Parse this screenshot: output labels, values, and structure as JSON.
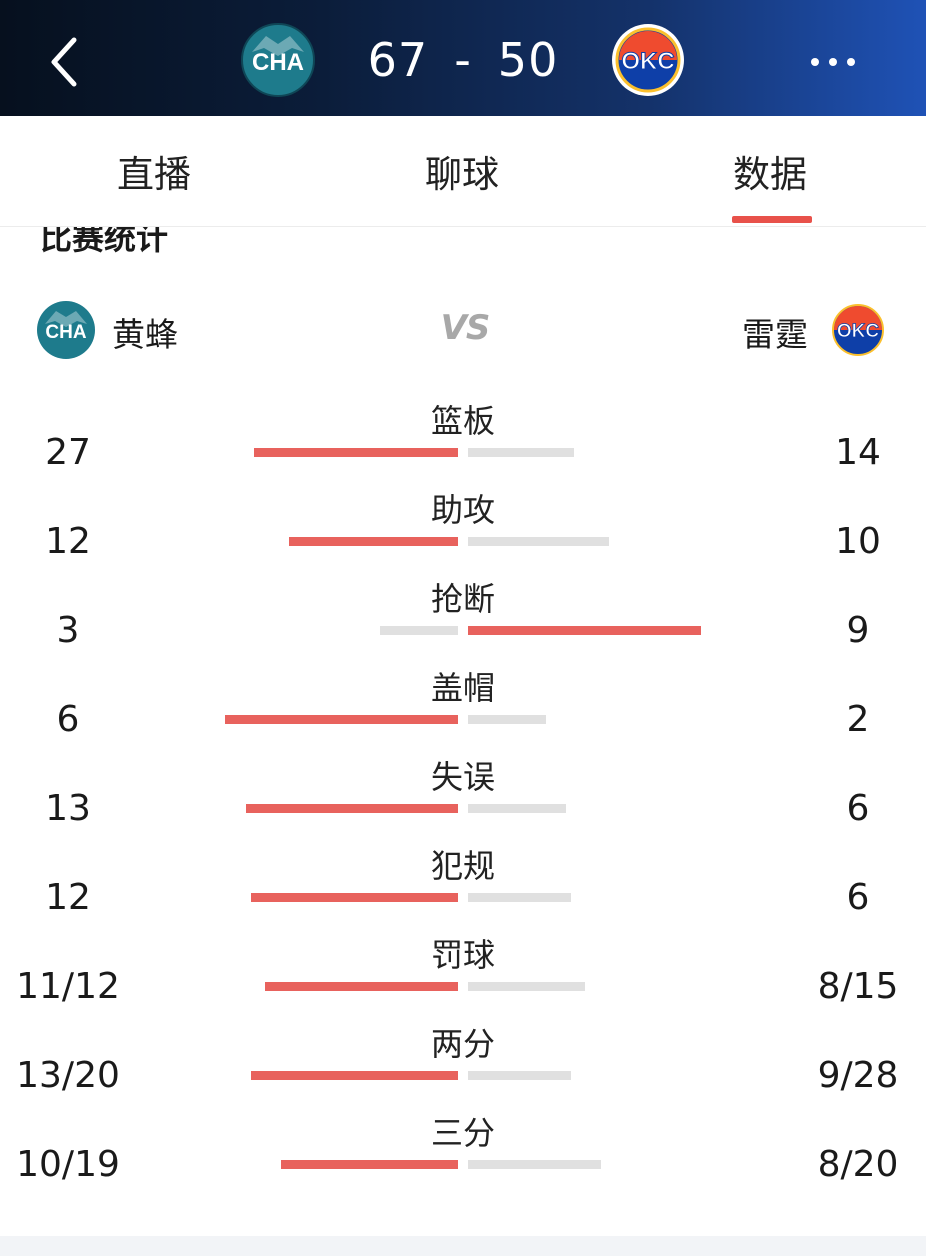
{
  "header": {
    "home_abbr": "CHA",
    "away_abbr": "OKC",
    "home_score": "67",
    "separator": "-",
    "away_score": "50"
  },
  "tabs": [
    {
      "label": "直播"
    },
    {
      "label": "聊球"
    },
    {
      "label": "数据",
      "active": true
    }
  ],
  "section": {
    "title": "比赛统计",
    "home_team": "黄蜂",
    "away_team": "雷霆",
    "vs": "VS"
  },
  "stats": [
    {
      "label": "篮板",
      "home": "27",
      "away": "14",
      "home_fraction": 0.659,
      "away_fraction": 0.341
    },
    {
      "label": "助攻",
      "home": "12",
      "away": "10",
      "home_fraction": 0.545,
      "away_fraction": 0.455
    },
    {
      "label": "抢断",
      "home": "3",
      "away": "9",
      "home_fraction": 0.25,
      "away_fraction": 0.75
    },
    {
      "label": "盖帽",
      "home": "6",
      "away": "2",
      "home_fraction": 0.75,
      "away_fraction": 0.25
    },
    {
      "label": "失误",
      "home": "13",
      "away": "6",
      "home_fraction": 0.684,
      "away_fraction": 0.316
    },
    {
      "label": "犯规",
      "home": "12",
      "away": "6",
      "home_fraction": 0.667,
      "away_fraction": 0.333
    },
    {
      "label": "罚球",
      "home": "11/12",
      "away": "8/15",
      "home_fraction": 0.621,
      "away_fraction": 0.379
    },
    {
      "label": "两分",
      "home": "13/20",
      "away": "9/28",
      "home_fraction": 0.668,
      "away_fraction": 0.332
    },
    {
      "label": "三分",
      "home": "10/19",
      "away": "8/20",
      "home_fraction": 0.571,
      "away_fraction": 0.429
    }
  ],
  "colors": {
    "accent": "#e8514a",
    "win_bar": "#e8625d",
    "lose_bar": "#e0e0e0",
    "cha_teal": "#1e7b8c",
    "okc_blue": "#0e3fa8",
    "okc_orange": "#ef4b2f"
  },
  "icons": {
    "back": "chevron-left-icon",
    "more": "more-dots-icon"
  }
}
